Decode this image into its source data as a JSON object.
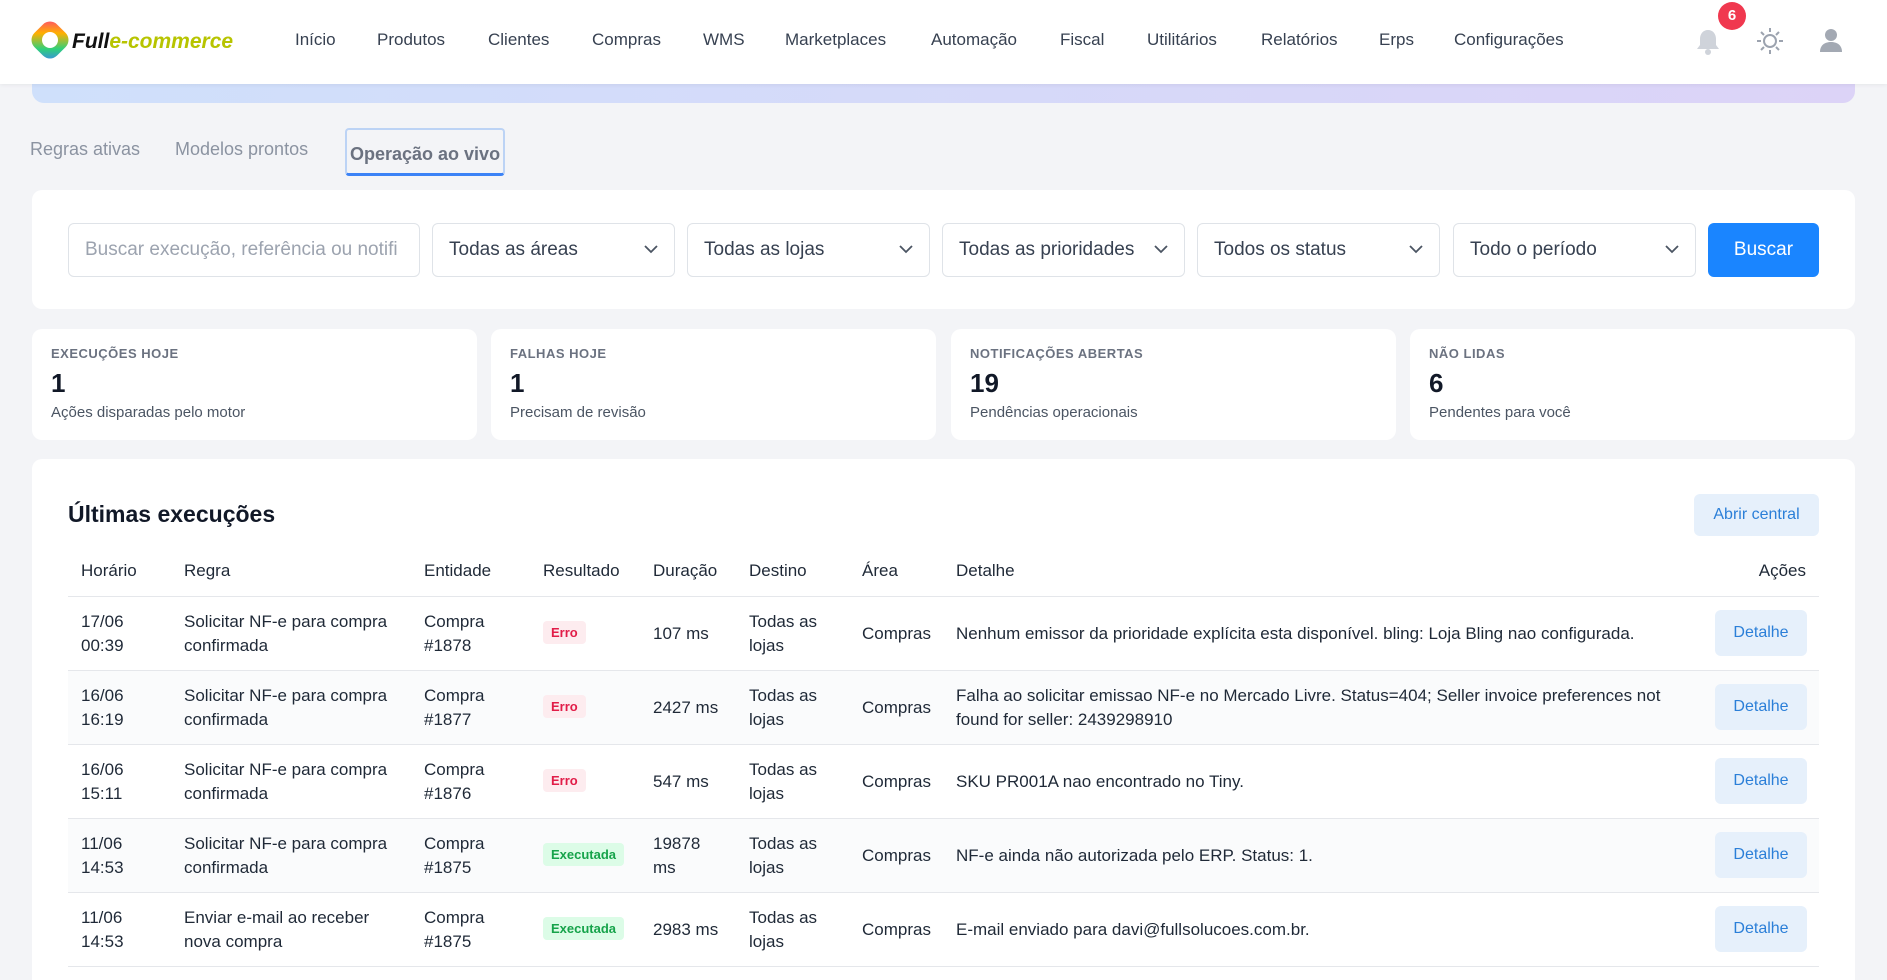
{
  "header": {
    "logo": {
      "brand": "Full",
      "suffix": "e-commerce"
    },
    "nav": [
      "Início",
      "Produtos",
      "Clientes",
      "Compras",
      "WMS",
      "Marketplaces",
      "Automação",
      "Fiscal",
      "Utilitários",
      "Relatórios",
      "Erps",
      "Configurações"
    ],
    "notification_count": "6"
  },
  "tabs": [
    "Regras ativas",
    "Modelos prontos",
    "Operação ao vivo"
  ],
  "filters": {
    "search_placeholder": "Buscar execução, referência ou notifi",
    "selects": [
      "Todas as áreas",
      "Todas as lojas",
      "Todas as prioridades",
      "Todos os status",
      "Todo o período"
    ],
    "button": "Buscar"
  },
  "stats": [
    {
      "label": "EXECUÇÕES HOJE",
      "value": "1",
      "caption": "Ações disparadas pelo motor"
    },
    {
      "label": "FALHAS HOJE",
      "value": "1",
      "caption": "Precisam de revisão"
    },
    {
      "label": "NOTIFICAÇÕES ABERTAS",
      "value": "19",
      "caption": "Pendências operacionais"
    },
    {
      "label": "NÃO LIDAS",
      "value": "6",
      "caption": "Pendentes para você"
    }
  ],
  "table": {
    "title": "Últimas execuções",
    "action_button": "Abrir central",
    "columns": [
      "Horário",
      "Regra",
      "Entidade",
      "Resultado",
      "Duração",
      "Destino",
      "Área",
      "Detalhe",
      "Ações"
    ],
    "rows": [
      {
        "date": "17/06",
        "time": "00:39",
        "rule": "Solicitar NF-e para compra confirmada",
        "entity": "Compra #1878",
        "result": "Erro",
        "duration": "107 ms",
        "target": "Todas as lojas",
        "area": "Compras",
        "detail": "Nenhum emissor da prioridade explícita esta disponível. bling: Loja Bling nao configurada.",
        "action": "Detalhe"
      },
      {
        "date": "16/06",
        "time": "16:19",
        "rule": "Solicitar NF-e para compra confirmada",
        "entity": "Compra #1877",
        "result": "Erro",
        "duration": "2427 ms",
        "target": "Todas as lojas",
        "area": "Compras",
        "detail": "Falha ao solicitar emissao NF-e no Mercado Livre. Status=404; Seller invoice preferences not found for seller: 2439298910",
        "action": "Detalhe"
      },
      {
        "date": "16/06",
        "time": "15:11",
        "rule": "Solicitar NF-e para compra confirmada",
        "entity": "Compra #1876",
        "result": "Erro",
        "duration": "547 ms",
        "target": "Todas as lojas",
        "area": "Compras",
        "detail": "SKU PR001A nao encontrado no Tiny.",
        "action": "Detalhe"
      },
      {
        "date": "11/06",
        "time": "14:53",
        "rule": "Solicitar NF-e para compra confirmada",
        "entity": "Compra #1875",
        "result": "Executada",
        "duration": "19878 ms",
        "target": "Todas as lojas",
        "area": "Compras",
        "detail": "NF-e ainda não autorizada pelo ERP. Status: 1.",
        "action": "Detalhe"
      },
      {
        "date": "11/06",
        "time": "14:53",
        "rule": "Enviar e-mail ao receber nova compra",
        "entity": "Compra #1875",
        "result": "Executada",
        "duration": "2983 ms",
        "target": "Todas as lojas",
        "area": "Compras",
        "detail": "E-mail enviado para davi@fullsolucoes.com.br.",
        "action": "Detalhe"
      }
    ]
  }
}
